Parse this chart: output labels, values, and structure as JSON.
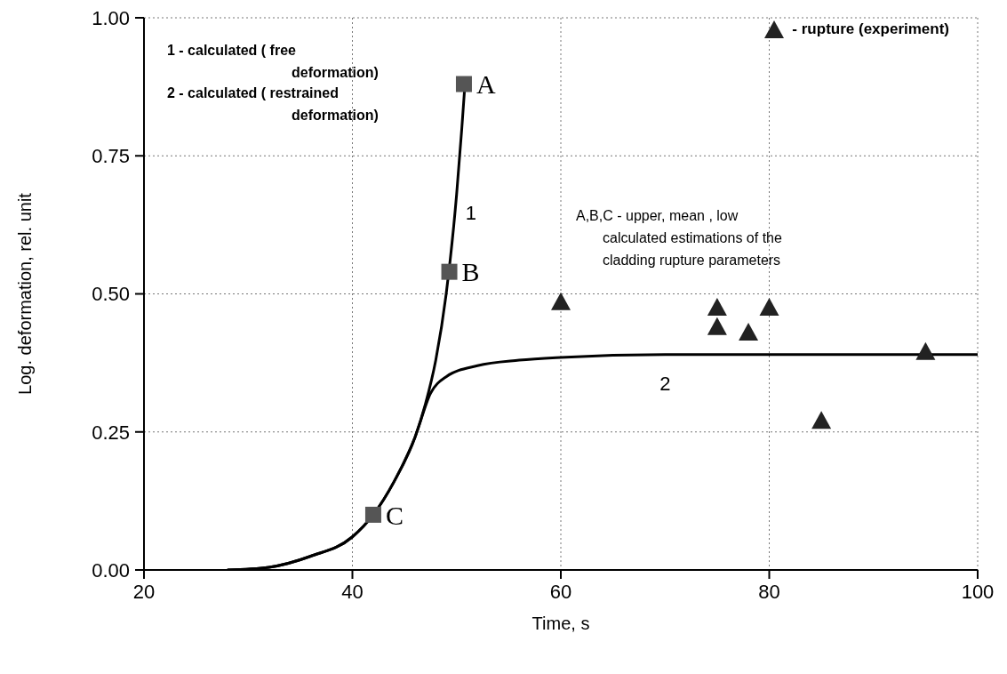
{
  "chart_data": {
    "type": "line",
    "xlabel": "Time, s",
    "ylabel": "Log. deformation,  rel. unit",
    "xlim": [
      20,
      100
    ],
    "xticks": [
      20,
      40,
      60,
      80,
      100
    ],
    "ylim": [
      0,
      1
    ],
    "yticks": [
      {
        "value": 0,
        "label": "0.00"
      },
      {
        "value": 0.25,
        "label": "0.25"
      },
      {
        "value": 0.5,
        "label": "0.50"
      },
      {
        "value": 0.75,
        "label": "0.75"
      },
      {
        "value": 1,
        "label": "1.00"
      }
    ],
    "grid": true,
    "legend": "top right",
    "line_style": "solid",
    "series": [
      {
        "name": "1",
        "color": "#000000",
        "marker": "none",
        "x": [
          28,
          32,
          36,
          40,
          42,
          44,
          46,
          47,
          48,
          49,
          50,
          50.5,
          50.8
        ],
        "values": [
          0,
          0.005,
          0.025,
          0.06,
          0.1,
          0.16,
          0.24,
          0.3,
          0.38,
          0.5,
          0.68,
          0.8,
          0.88
        ]
      },
      {
        "name": "2",
        "color": "#000000",
        "marker": "none",
        "x": [
          28,
          32,
          36,
          40,
          42,
          44,
          46,
          47.5,
          49,
          52,
          56,
          60,
          70,
          100
        ],
        "values": [
          0,
          0.005,
          0.025,
          0.06,
          0.1,
          0.16,
          0.24,
          0.32,
          0.35,
          0.37,
          0.38,
          0.385,
          0.39,
          0.39
        ]
      },
      {
        "type": "scatter",
        "color": "#555555",
        "marker": "square",
        "x": [
          50.7,
          49.3,
          42
        ],
        "values": [
          0.88,
          0.54,
          0.1
        ]
      },
      {
        "name": "- rupture  (experiment)",
        "type": "scatter",
        "color": "#222222",
        "marker": "triangle",
        "x": [
          60,
          75,
          75,
          78,
          80,
          85,
          95
        ],
        "values": [
          0.485,
          0.475,
          0.44,
          0.43,
          0.475,
          0.27,
          0.395
        ]
      }
    ],
    "annotations": [
      {
        "text": "A",
        "x": 50.7,
        "y": 0.88
      },
      {
        "text": "B",
        "x": 49.3,
        "y": 0.54
      },
      {
        "text": "C",
        "x": 42,
        "y": 0.1
      },
      "1 - calculated  ( free deformation)",
      "2 - calculated  ( restrained deformation)",
      "A,B,C - upper, mean , low calculated estimations of the cladding rupture parameters"
    ]
  }
}
